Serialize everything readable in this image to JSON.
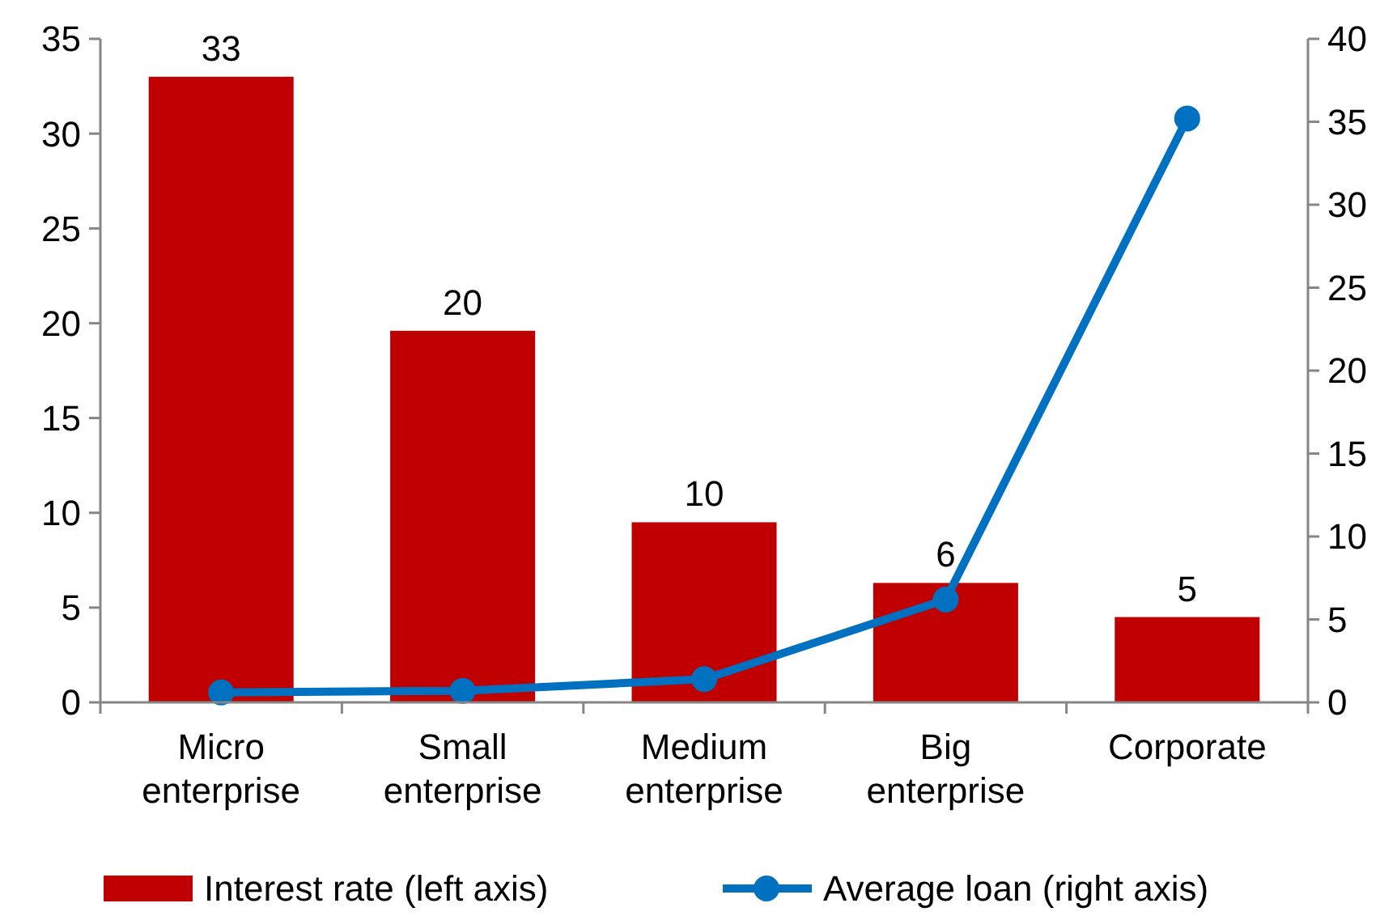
{
  "chart_data": {
    "type": "bar",
    "categories": [
      "Micro enterprise",
      "Small enterprise",
      "Medium enterprise",
      "Big enterprise",
      "Corporate"
    ],
    "series": [
      {
        "name": "Interest rate (left axis)",
        "color": "#c00000",
        "values": [
          33,
          19.6,
          9.5,
          6.3,
          4.5
        ],
        "value_labels": [
          "33",
          "20",
          "10",
          "6",
          "5"
        ]
      },
      {
        "name": "Average loan (right axis)",
        "type": "line",
        "axis": "y2",
        "color": "#0070c0",
        "values": [
          0.6,
          0.7,
          1.4,
          6.2,
          35.2
        ],
        "marker": "circle"
      }
    ],
    "ylim": [
      0,
      35
    ],
    "yticks": [
      0,
      5,
      10,
      15,
      20,
      25,
      30,
      35
    ],
    "y2lim": [
      0,
      40
    ],
    "y2ticks": [
      0,
      5,
      10,
      15,
      20,
      25,
      30,
      35,
      40
    ],
    "grid": false,
    "legend": "bottom"
  }
}
